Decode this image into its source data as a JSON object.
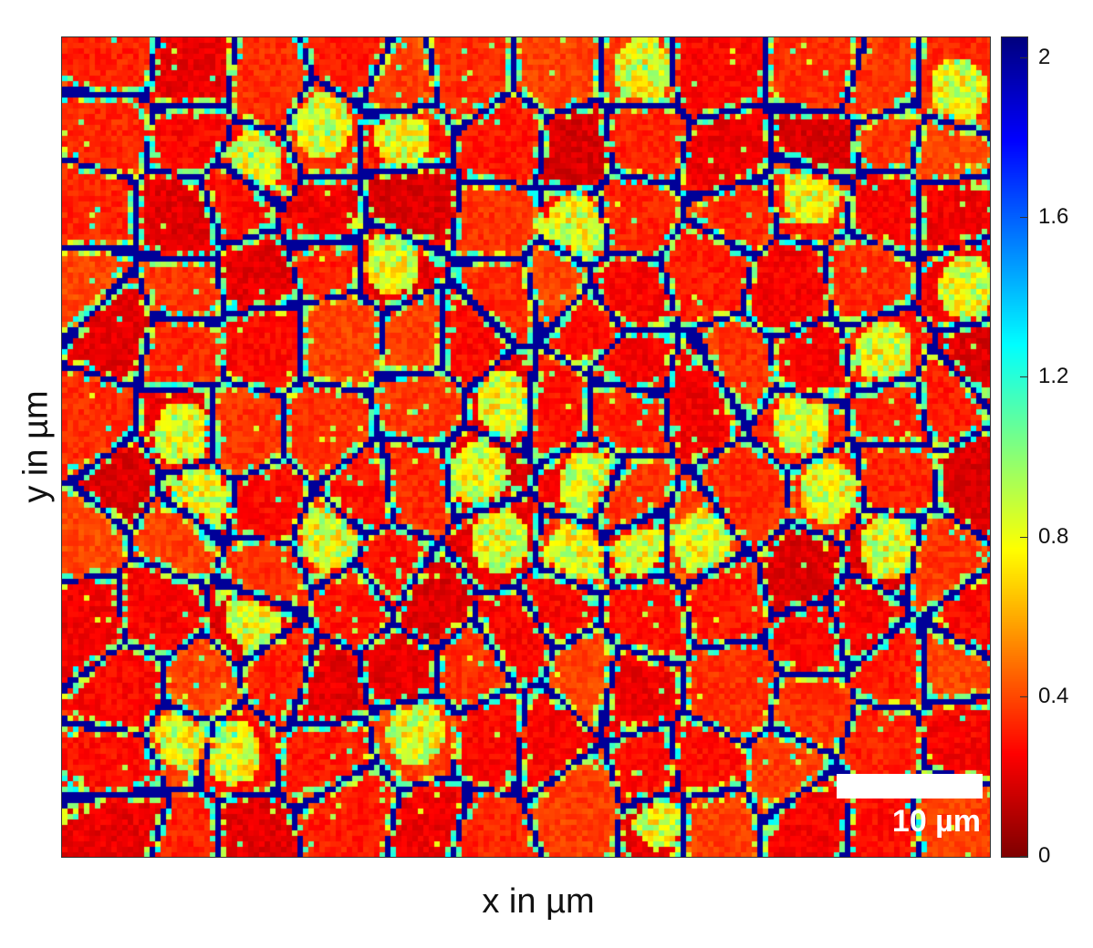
{
  "chart_data": {
    "type": "heatmap",
    "title": "",
    "xlabel": "x in µm",
    "ylabel": "y in µm",
    "colorbar": {
      "colormap": "jet",
      "range": [
        0,
        2.05
      ],
      "ticks": [
        0,
        0.4,
        0.8,
        1.2,
        1.6,
        2
      ],
      "tick_labels": [
        "0",
        "0.4",
        "0.8",
        "1.2",
        "1.6",
        "2"
      ]
    },
    "scale_bar": {
      "label": "10 µm",
      "length_um": 10
    },
    "description_values": {
      "grain_interior_typical": 0.25,
      "grain_edge_typical": 0.8,
      "grain_boundary": 2.0
    },
    "grid": false,
    "axis_tick_labels_shown": false
  },
  "colors": {
    "low": "#800000",
    "mid_red": "#e03a1e",
    "yellow": "#f5f54a",
    "cyan": "#5ef0f0",
    "boundary": "#00008b",
    "scalebar": "#ffffff"
  }
}
